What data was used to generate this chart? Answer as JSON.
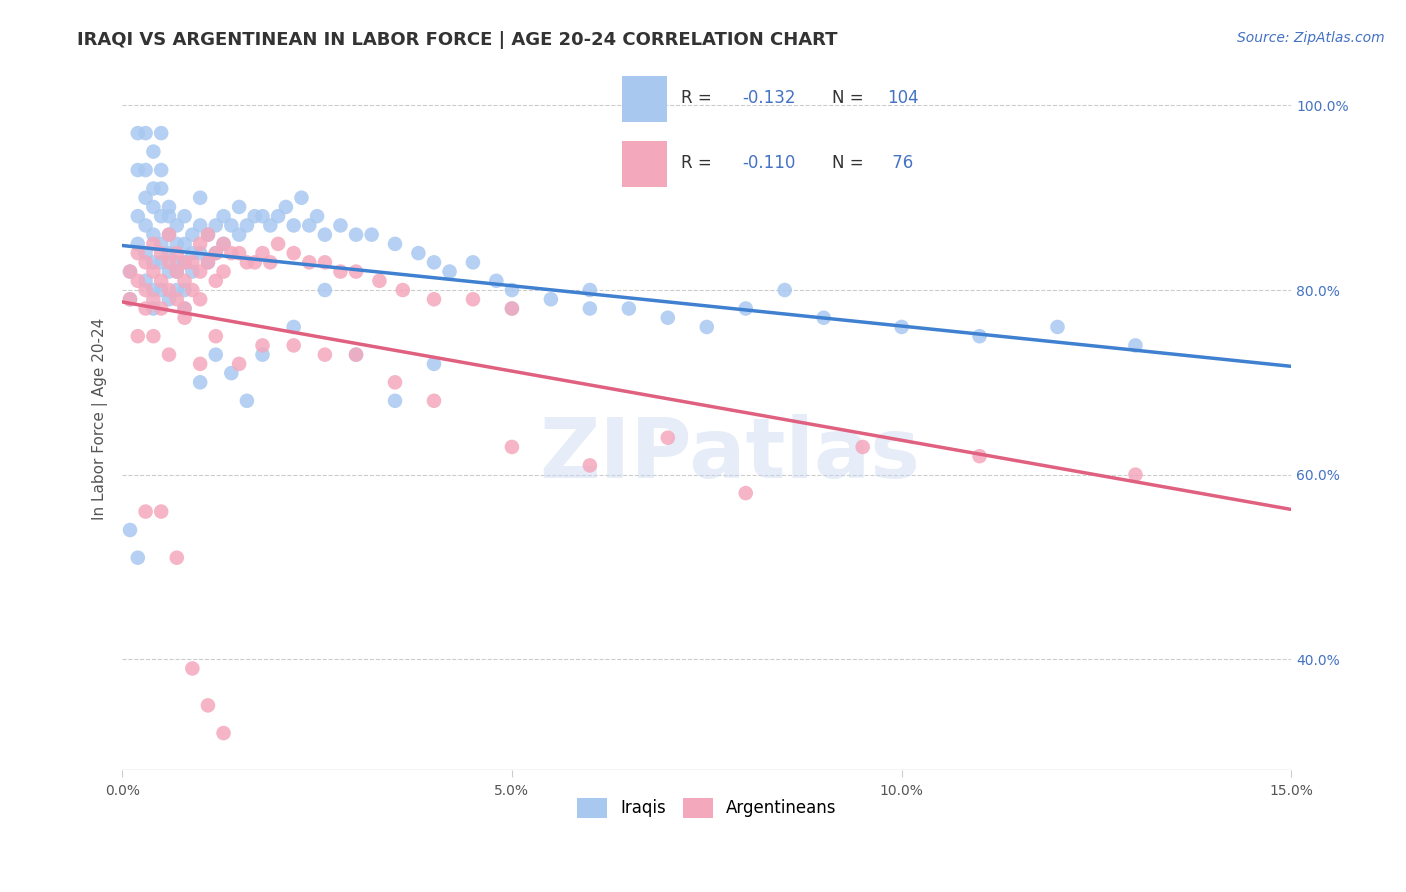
{
  "title": "IRAQI VS ARGENTINEAN IN LABOR FORCE | AGE 20-24 CORRELATION CHART",
  "source": "Source: ZipAtlas.com",
  "ylabel": "In Labor Force | Age 20-24",
  "right_yticks": [
    "40.0%",
    "60.0%",
    "80.0%",
    "100.0%"
  ],
  "right_ytick_vals": [
    0.4,
    0.6,
    0.8,
    1.0
  ],
  "watermark": "ZIPatlas",
  "iraqi_color": "#A8C8F0",
  "argentinean_color": "#F4A8BC",
  "trend_iraqi_color": "#4080D0",
  "trend_argentinean_color": "#E06080",
  "background_color": "#FFFFFF",
  "grid_color": "#CCCCCC",
  "iraqi_x": [
    0.001,
    0.001,
    0.002,
    0.002,
    0.002,
    0.003,
    0.003,
    0.003,
    0.003,
    0.004,
    0.004,
    0.004,
    0.004,
    0.004,
    0.005,
    0.005,
    0.005,
    0.005,
    0.005,
    0.006,
    0.006,
    0.006,
    0.006,
    0.006,
    0.007,
    0.007,
    0.007,
    0.007,
    0.008,
    0.008,
    0.008,
    0.008,
    0.009,
    0.009,
    0.009,
    0.01,
    0.01,
    0.01,
    0.011,
    0.011,
    0.012,
    0.012,
    0.013,
    0.013,
    0.014,
    0.015,
    0.015,
    0.016,
    0.017,
    0.018,
    0.019,
    0.02,
    0.021,
    0.022,
    0.023,
    0.024,
    0.025,
    0.026,
    0.028,
    0.03,
    0.032,
    0.035,
    0.038,
    0.04,
    0.042,
    0.045,
    0.048,
    0.05,
    0.055,
    0.06,
    0.065,
    0.07,
    0.075,
    0.08,
    0.085,
    0.09,
    0.1,
    0.11,
    0.12,
    0.13,
    0.001,
    0.002,
    0.003,
    0.004,
    0.005,
    0.006,
    0.007,
    0.008,
    0.01,
    0.012,
    0.014,
    0.016,
    0.018,
    0.022,
    0.026,
    0.03,
    0.035,
    0.04,
    0.05,
    0.06,
    0.002,
    0.003,
    0.004,
    0.005
  ],
  "iraqi_y": [
    0.82,
    0.79,
    0.88,
    0.85,
    0.93,
    0.9,
    0.87,
    0.84,
    0.81,
    0.89,
    0.86,
    0.83,
    0.8,
    0.78,
    0.91,
    0.88,
    0.85,
    0.83,
    0.8,
    0.89,
    0.86,
    0.84,
    0.82,
    0.79,
    0.87,
    0.85,
    0.83,
    0.8,
    0.88,
    0.85,
    0.83,
    0.8,
    0.86,
    0.84,
    0.82,
    0.9,
    0.87,
    0.84,
    0.86,
    0.83,
    0.87,
    0.84,
    0.88,
    0.85,
    0.87,
    0.89,
    0.86,
    0.87,
    0.88,
    0.88,
    0.87,
    0.88,
    0.89,
    0.87,
    0.9,
    0.87,
    0.88,
    0.86,
    0.87,
    0.86,
    0.86,
    0.85,
    0.84,
    0.83,
    0.82,
    0.83,
    0.81,
    0.8,
    0.79,
    0.8,
    0.78,
    0.77,
    0.76,
    0.78,
    0.8,
    0.77,
    0.76,
    0.75,
    0.76,
    0.74,
    0.54,
    0.51,
    0.93,
    0.91,
    0.93,
    0.88,
    0.82,
    0.78,
    0.7,
    0.73,
    0.71,
    0.68,
    0.73,
    0.76,
    0.8,
    0.73,
    0.68,
    0.72,
    0.78,
    0.78,
    0.97,
    0.97,
    0.95,
    0.97
  ],
  "argentinean_x": [
    0.001,
    0.001,
    0.002,
    0.002,
    0.003,
    0.003,
    0.003,
    0.004,
    0.004,
    0.004,
    0.005,
    0.005,
    0.005,
    0.006,
    0.006,
    0.006,
    0.007,
    0.007,
    0.007,
    0.008,
    0.008,
    0.008,
    0.009,
    0.009,
    0.01,
    0.01,
    0.01,
    0.011,
    0.011,
    0.012,
    0.012,
    0.013,
    0.013,
    0.014,
    0.015,
    0.016,
    0.017,
    0.018,
    0.019,
    0.02,
    0.022,
    0.024,
    0.026,
    0.028,
    0.03,
    0.033,
    0.036,
    0.04,
    0.045,
    0.05,
    0.002,
    0.004,
    0.006,
    0.008,
    0.01,
    0.012,
    0.015,
    0.018,
    0.022,
    0.026,
    0.03,
    0.035,
    0.04,
    0.05,
    0.06,
    0.07,
    0.08,
    0.095,
    0.11,
    0.13,
    0.003,
    0.005,
    0.007,
    0.009,
    0.011,
    0.013
  ],
  "argentinean_y": [
    0.82,
    0.79,
    0.84,
    0.81,
    0.83,
    0.8,
    0.78,
    0.85,
    0.82,
    0.79,
    0.84,
    0.81,
    0.78,
    0.86,
    0.83,
    0.8,
    0.84,
    0.82,
    0.79,
    0.83,
    0.81,
    0.78,
    0.83,
    0.8,
    0.85,
    0.82,
    0.79,
    0.86,
    0.83,
    0.84,
    0.81,
    0.85,
    0.82,
    0.84,
    0.84,
    0.83,
    0.83,
    0.84,
    0.83,
    0.85,
    0.84,
    0.83,
    0.83,
    0.82,
    0.82,
    0.81,
    0.8,
    0.79,
    0.79,
    0.78,
    0.75,
    0.75,
    0.73,
    0.77,
    0.72,
    0.75,
    0.72,
    0.74,
    0.74,
    0.73,
    0.73,
    0.7,
    0.68,
    0.63,
    0.61,
    0.64,
    0.58,
    0.63,
    0.62,
    0.6,
    0.56,
    0.56,
    0.51,
    0.39,
    0.35,
    0.32
  ],
  "xlim": [
    0.0,
    0.15
  ],
  "ylim": [
    0.28,
    1.04
  ],
  "xticks": [
    0.0,
    0.05,
    0.1,
    0.15
  ],
  "xticklabels": [
    "0.0%",
    "5.0%",
    "10.0%",
    "15.0%"
  ],
  "title_fontsize": 13,
  "axis_label_fontsize": 11,
  "tick_fontsize": 10,
  "source_fontsize": 10,
  "legend_fontsize": 12
}
